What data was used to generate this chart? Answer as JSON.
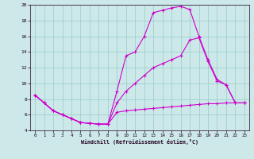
{
  "xlabel": "Windchill (Refroidissement éolien,°C)",
  "bg_color": "#cce8e8",
  "grid_color": "#99cccc",
  "line_color": "#cc00cc",
  "xlim": [
    -0.5,
    23.5
  ],
  "ylim": [
    4,
    20
  ],
  "yticks": [
    4,
    6,
    8,
    10,
    12,
    14,
    16,
    18,
    20
  ],
  "xticks": [
    0,
    1,
    2,
    3,
    4,
    5,
    6,
    7,
    8,
    9,
    10,
    11,
    12,
    13,
    14,
    15,
    16,
    17,
    18,
    19,
    20,
    21,
    22,
    23
  ],
  "series1_x": [
    0,
    1,
    2,
    3,
    4,
    5,
    6,
    7,
    8,
    9,
    10,
    11,
    12,
    13,
    14,
    15,
    16,
    17,
    18,
    19,
    20,
    21,
    22,
    23
  ],
  "series1_y": [
    8.5,
    7.5,
    6.5,
    6.0,
    5.5,
    5.0,
    4.9,
    4.8,
    4.8,
    9.0,
    13.5,
    14.0,
    16.0,
    19.0,
    19.3,
    19.6,
    19.8,
    19.4,
    16.0,
    13.0,
    10.5,
    9.8,
    7.5,
    7.5
  ],
  "series2_x": [
    0,
    1,
    2,
    3,
    4,
    5,
    6,
    7,
    8,
    9,
    10,
    11,
    12,
    13,
    14,
    15,
    16,
    17,
    18,
    19,
    20,
    21,
    22,
    23
  ],
  "series2_y": [
    8.5,
    7.5,
    6.5,
    6.0,
    5.5,
    5.0,
    4.9,
    4.8,
    4.8,
    6.3,
    6.5,
    6.6,
    6.7,
    6.8,
    6.9,
    7.0,
    7.1,
    7.2,
    7.3,
    7.4,
    7.4,
    7.5,
    7.5,
    7.5
  ],
  "series3_x": [
    0,
    1,
    2,
    3,
    4,
    5,
    6,
    7,
    8,
    9,
    10,
    11,
    12,
    13,
    14,
    15,
    16,
    17,
    18,
    19,
    20,
    21,
    22,
    23
  ],
  "series3_y": [
    8.5,
    7.5,
    6.5,
    6.0,
    5.5,
    5.0,
    4.9,
    4.8,
    4.8,
    7.5,
    9.0,
    10.0,
    11.0,
    12.0,
    12.5,
    13.0,
    13.5,
    15.5,
    15.8,
    12.8,
    10.3,
    9.8,
    7.5,
    7.5
  ]
}
